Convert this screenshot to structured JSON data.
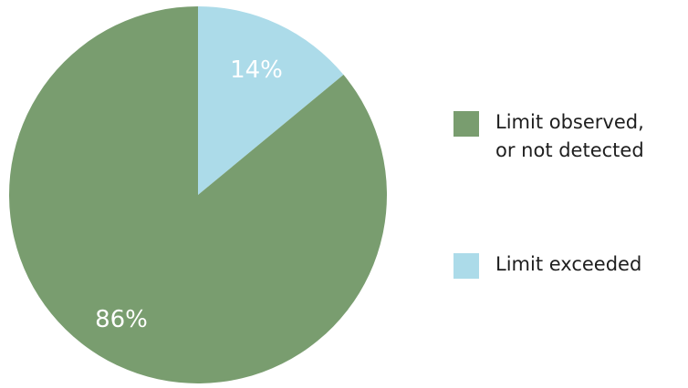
{
  "chart_data": {
    "type": "pie",
    "title": "",
    "slices": [
      {
        "label": "Limit exceeded",
        "value": 14,
        "display": "14%",
        "color": "#acdbe9"
      },
      {
        "label": "Limit observed,\nor not detected",
        "value": 86,
        "display": "86%",
        "color": "#799d6f"
      }
    ],
    "legend_position": "right",
    "start_angle": "top",
    "direction": "clockwise"
  }
}
